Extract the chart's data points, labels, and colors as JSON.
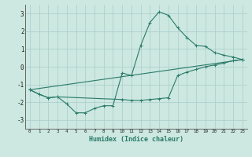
{
  "xlabel": "Humidex (Indice chaleur)",
  "xlim": [
    -0.5,
    23.5
  ],
  "ylim": [
    -3.5,
    3.5
  ],
  "yticks": [
    -3,
    -2,
    -1,
    0,
    1,
    2,
    3
  ],
  "xticks": [
    0,
    1,
    2,
    3,
    4,
    5,
    6,
    7,
    8,
    9,
    10,
    11,
    12,
    13,
    14,
    15,
    16,
    17,
    18,
    19,
    20,
    21,
    22,
    23
  ],
  "bg_color": "#cce8e0",
  "grid_color": "#aacccc",
  "line_color": "#2a7a6a",
  "lines": [
    {
      "x": [
        0,
        1,
        2,
        3,
        4,
        5,
        6,
        7,
        8,
        9,
        10,
        11,
        12,
        13,
        14,
        15,
        16,
        17,
        18,
        19,
        20,
        21,
        22,
        23
      ],
      "y": [
        -1.3,
        -1.55,
        -1.75,
        -1.7,
        -2.1,
        -2.6,
        -2.6,
        -2.35,
        -2.2,
        -2.2,
        -0.35,
        -0.5,
        1.2,
        2.5,
        3.1,
        2.9,
        2.2,
        1.65,
        1.2,
        1.15,
        0.8,
        0.65,
        0.55,
        0.4
      ]
    },
    {
      "x": [
        0,
        1,
        2,
        3,
        10,
        11,
        12,
        13,
        14,
        15,
        16,
        17,
        18,
        19,
        20,
        21,
        22,
        23
      ],
      "y": [
        -1.3,
        -1.55,
        -1.75,
        -1.7,
        -1.85,
        -1.9,
        -1.9,
        -1.85,
        -1.8,
        -1.75,
        -0.5,
        -0.3,
        -0.15,
        -0.0,
        0.1,
        0.2,
        0.35,
        0.4
      ]
    },
    {
      "x": [
        0,
        23
      ],
      "y": [
        -1.3,
        0.4
      ]
    }
  ]
}
